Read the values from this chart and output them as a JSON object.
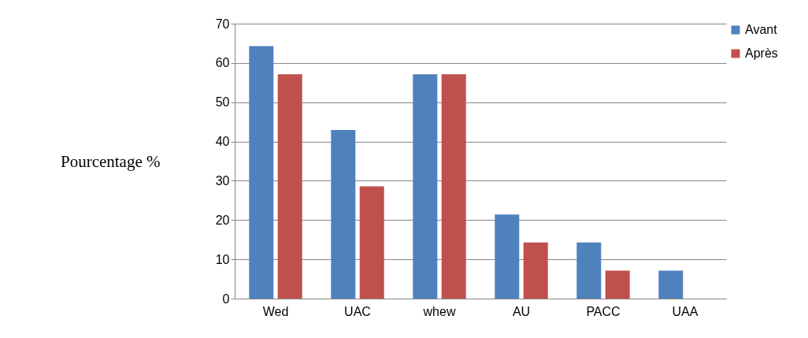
{
  "chart_data": {
    "type": "bar",
    "ylabel": "Pourcentage %",
    "categories": [
      "Wed",
      "UAC",
      "whew",
      "AU",
      "PACC",
      "UAA"
    ],
    "series": [
      {
        "name": "Avant",
        "color": "#4f81bd",
        "values": [
          64.3,
          42.9,
          57.1,
          21.4,
          14.3,
          7.1
        ]
      },
      {
        "name": "Après",
        "color": "#c0504d",
        "values": [
          57.1,
          28.6,
          57.1,
          14.3,
          7.1,
          0
        ]
      }
    ],
    "ylim": [
      0,
      70
    ],
    "yticks": [
      0,
      10,
      20,
      30,
      40,
      50,
      60,
      70
    ],
    "grid": "y",
    "legend": "right"
  }
}
